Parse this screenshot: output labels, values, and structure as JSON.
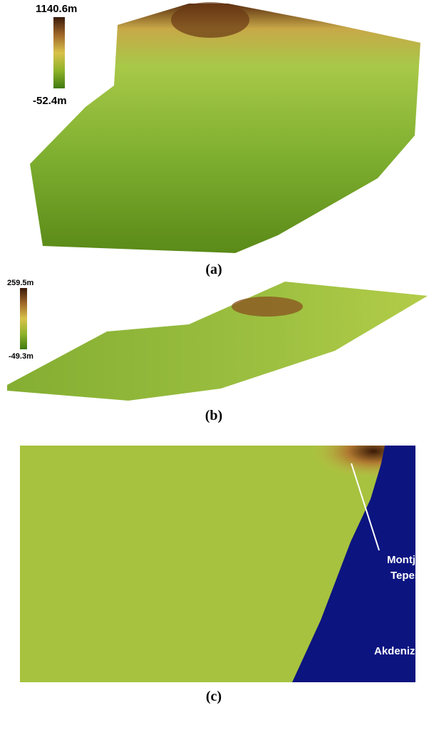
{
  "panels": [
    {
      "legend": {
        "max": "1140.6m",
        "min": "-52.4m"
      },
      "caption": "(a)"
    },
    {
      "legend": {
        "max": "259.5m",
        "min": "-49.3m"
      },
      "caption": "(b)"
    },
    {
      "annotations": {
        "peak": [
          "Montjuic",
          "Tepesi"
        ],
        "sea": "Akdeniz"
      },
      "caption": "(c)"
    }
  ]
}
